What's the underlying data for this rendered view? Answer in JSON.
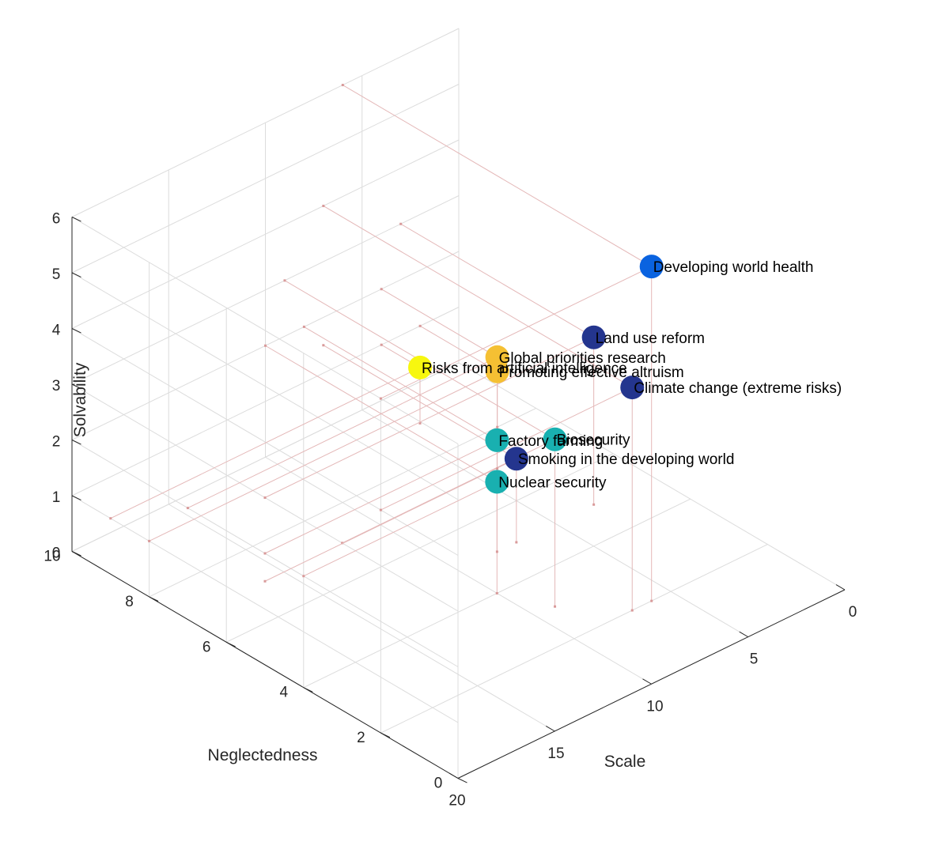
{
  "chart_data": {
    "type": "scatter3d",
    "title": "",
    "xlabel": "Scale",
    "ylabel": "Neglectedness",
    "zlabel": "Solvability",
    "xlim": [
      0,
      20
    ],
    "ylim": [
      0,
      10
    ],
    "zlim": [
      0,
      6
    ],
    "x_ticks": [
      "0",
      "5",
      "10",
      "15",
      "20"
    ],
    "y_ticks": [
      "0",
      "2",
      "4",
      "6",
      "8",
      "10"
    ],
    "z_ticks": [
      "0",
      "1",
      "2",
      "3",
      "4",
      "5",
      "6"
    ],
    "grid": true,
    "colors": {
      "grid": "#dcdcdc",
      "axis": "#262626",
      "stem": "#e4b8b8",
      "stem_marker": "#d99a9a",
      "colormap": [
        "#2b2a7a",
        "#0a63e0",
        "#19b0b0",
        "#f5c033",
        "#f7f70f"
      ]
    },
    "points": [
      {
        "label": "Developing world health",
        "scale": 6,
        "neglectedness": 2,
        "solvability": 6,
        "color_value": 0.25
      },
      {
        "label": "Climate change (extreme risks)",
        "scale": 7,
        "neglectedness": 2,
        "solvability": 4,
        "color_value": 0.05
      },
      {
        "label": "Biosecurity",
        "scale": 9,
        "neglectedness": 3,
        "solvability": 3,
        "color_value": 0.5
      },
      {
        "label": "Factory farming",
        "scale": 8,
        "neglectedness": 5,
        "solvability": 2,
        "color_value": 0.5
      },
      {
        "label": "Land use reform",
        "scale": 3,
        "neglectedness": 5,
        "solvability": 3,
        "color_value": 0.05
      },
      {
        "label": "Smoking in the developing world",
        "scale": 7,
        "neglectedness": 5,
        "solvability": 1.5,
        "color_value": 0.05
      },
      {
        "label": "Nuclear security",
        "scale": 10,
        "neglectedness": 4,
        "solvability": 2,
        "color_value": 0.5
      },
      {
        "label": "Global priorities research",
        "scale": 4,
        "neglectedness": 7,
        "solvability": 2,
        "color_value": 0.75
      },
      {
        "label": "Promoting effective altruism",
        "scale": 2,
        "neglectedness": 8,
        "solvability": 1,
        "color_value": 0.75
      },
      {
        "label": "Risks from artificial intelligence",
        "scale": 4,
        "neglectedness": 9,
        "solvability": 1,
        "color_value": 1.0
      }
    ]
  }
}
